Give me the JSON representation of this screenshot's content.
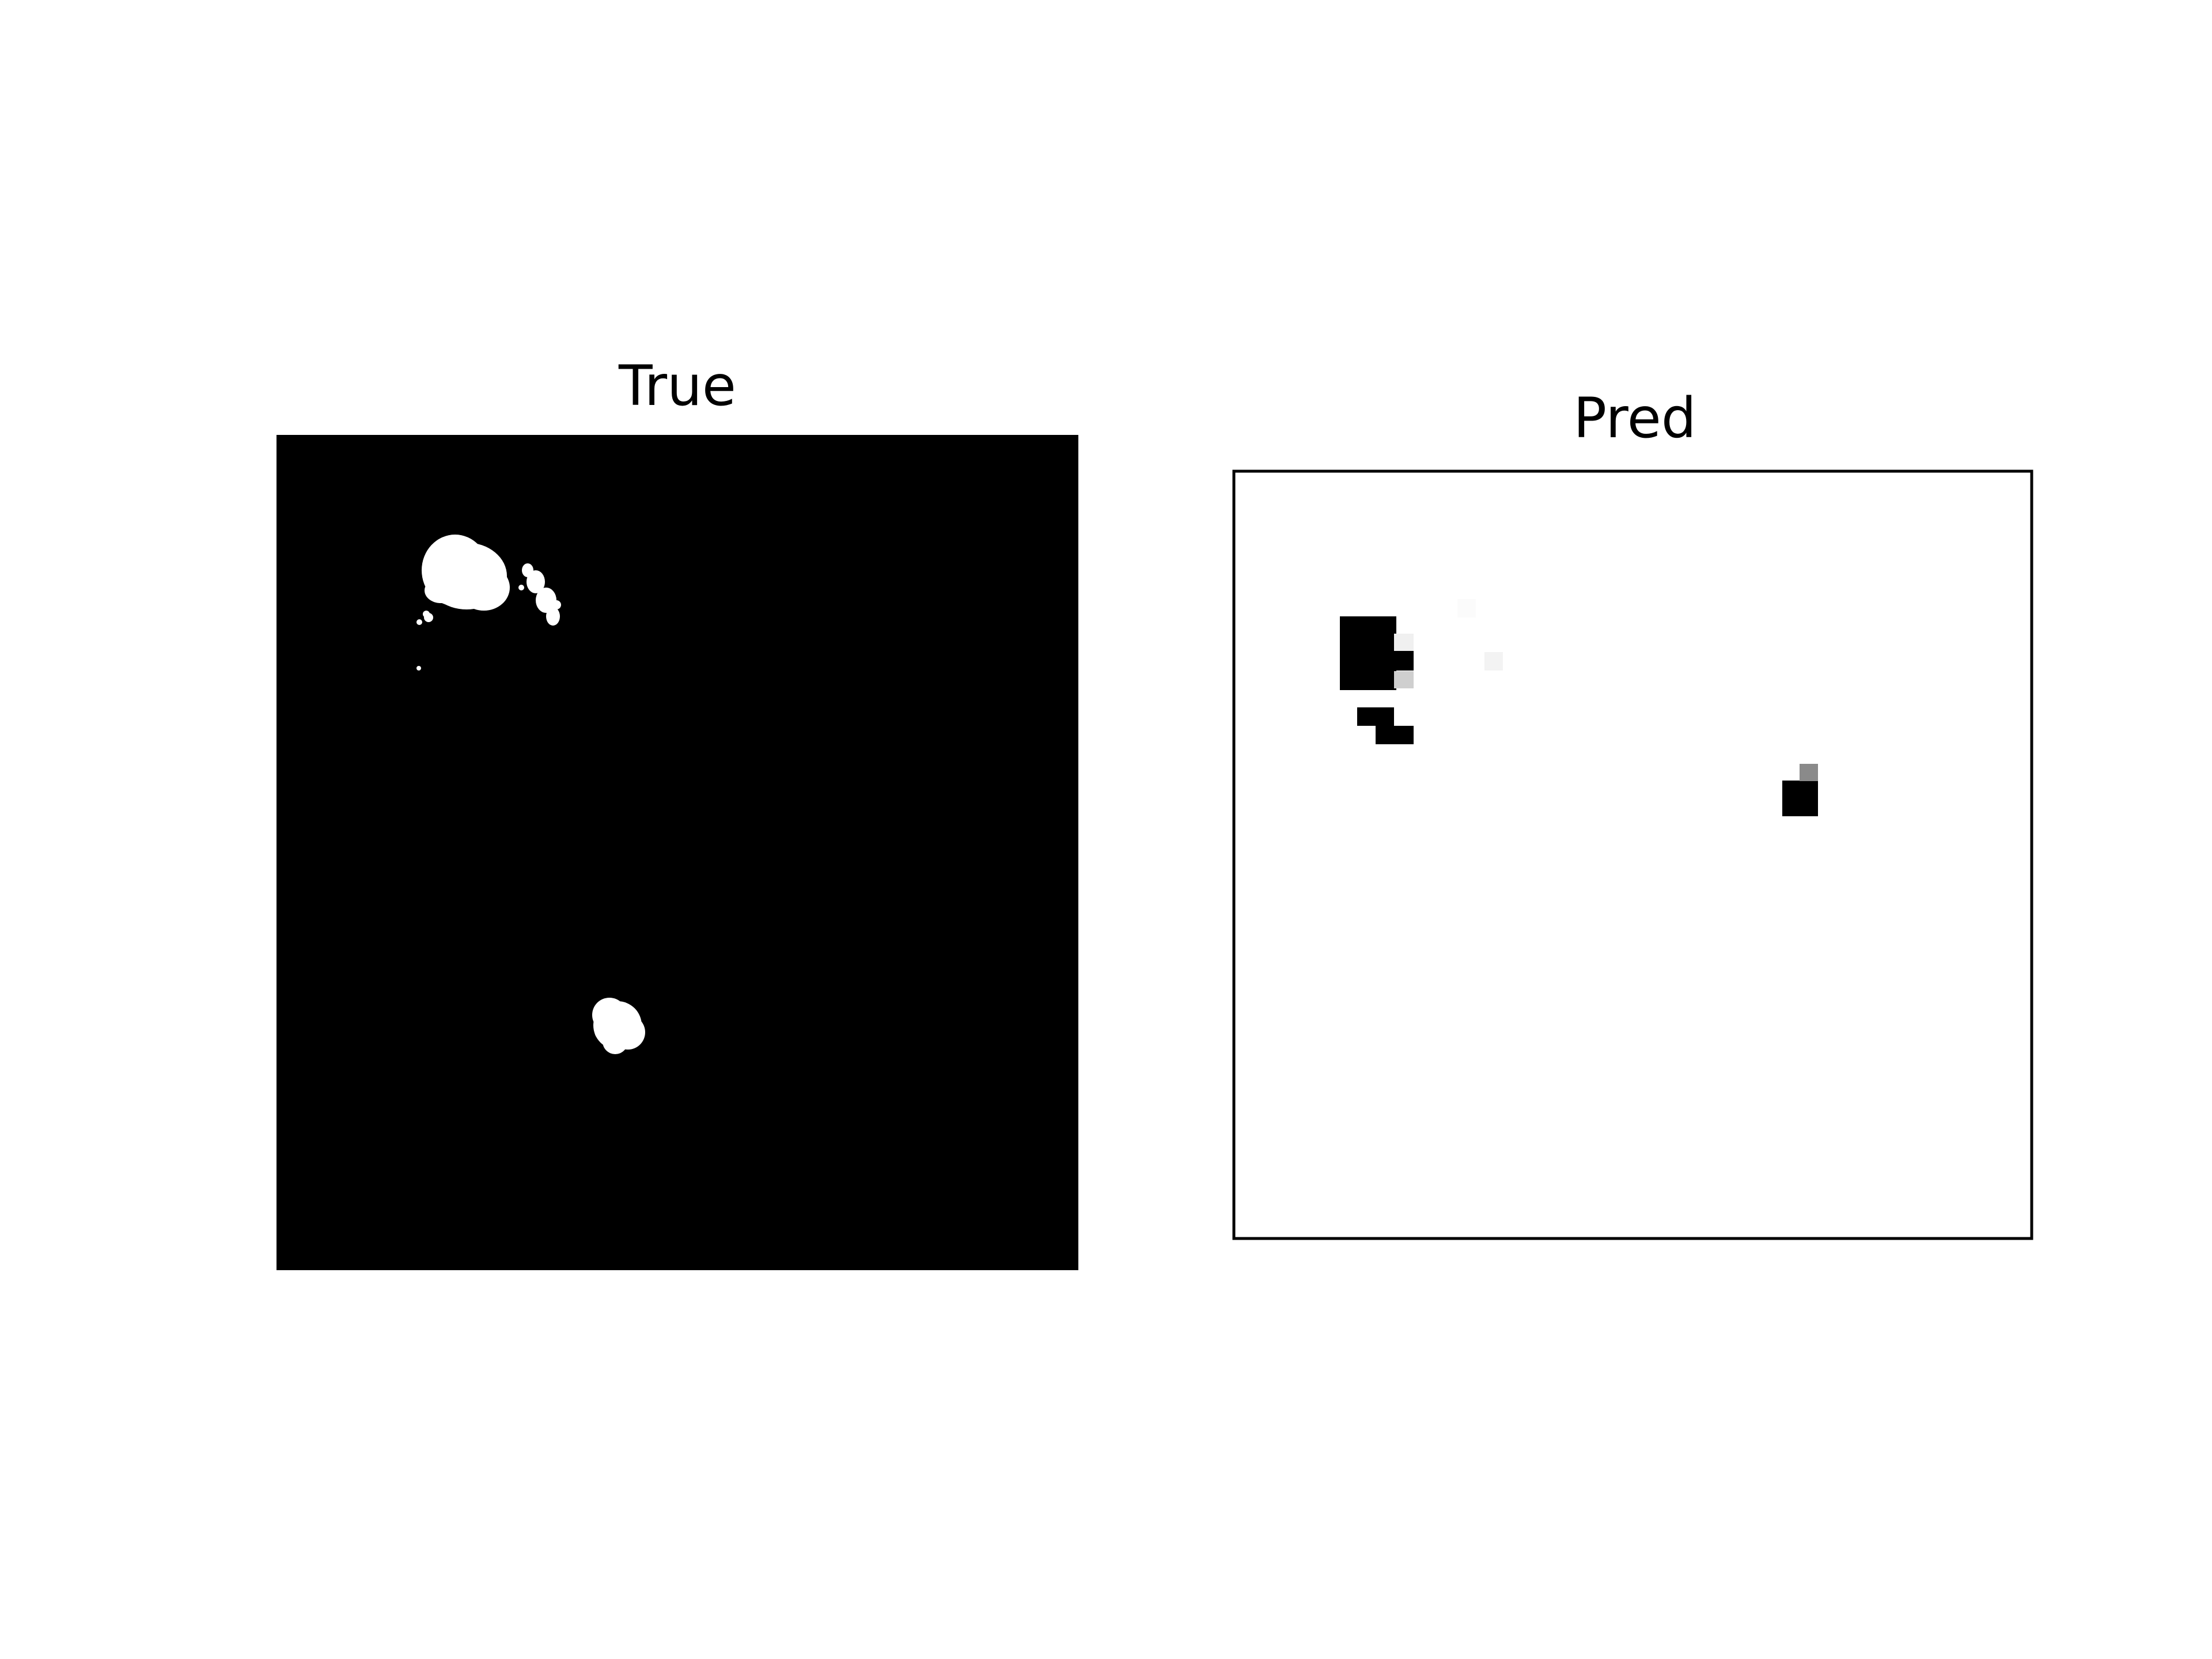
{
  "figure": {
    "panels": [
      {
        "title": "True",
        "background": "#000000",
        "foreground": "#ffffff"
      },
      {
        "title": "Pred",
        "background": "#ffffff",
        "foreground": "#000000",
        "frame_color": "#000000"
      }
    ]
  }
}
